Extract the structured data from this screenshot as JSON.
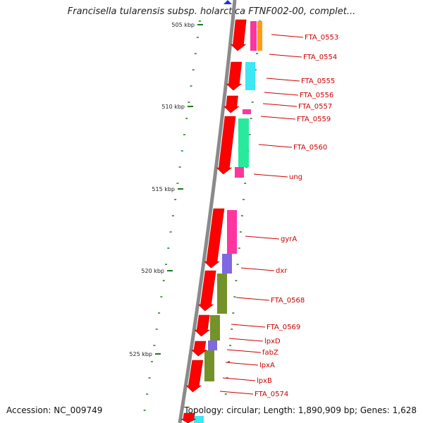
{
  "title": "Francisella tularensis subsp. holarctica FTNF002-00, complet...",
  "footer": {
    "accession": "Accession: NC_009749",
    "info": "Topology: circular; Length: 1,890,909 bp; Genes: 1,628"
  },
  "colors": {
    "backbone": "#8a8a8a",
    "gene": "#ff0000",
    "tick": "#1a7a1a",
    "label": "#cc0000",
    "cog_pink": "#ff2a9a",
    "cog_orange": "#ff9900",
    "cog_cyan": "#33e6f2",
    "cog_green": "#1ee898",
    "cog_olive": "#6b8c1e",
    "cog_purple": "#7a5fe0",
    "cog_blue": "#2233dd"
  },
  "kbp_labels": [
    "505 kbp",
    "510 kbp",
    "515 kbp",
    "520 kbp",
    "525 kbp"
  ],
  "gene_labels": [
    "FTA_0553",
    "FTA_0554",
    "FTA_0555",
    "FTA_0556",
    "FTA_0557",
    "FTA_0559",
    "FTA_0560",
    "ung",
    "gyrA",
    "dxr",
    "FTA_0568",
    "FTA_0569",
    "lpxD",
    "fabZ",
    "lpxA",
    "lpxB",
    "FTA_0574"
  ]
}
